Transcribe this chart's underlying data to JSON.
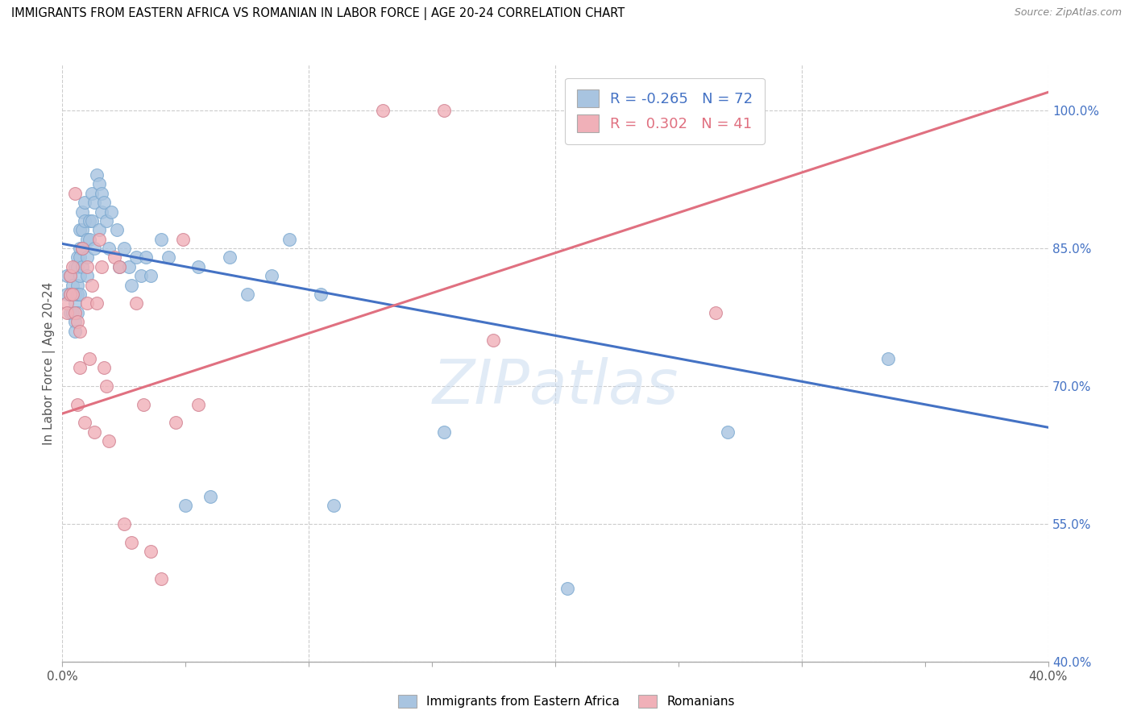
{
  "title": "IMMIGRANTS FROM EASTERN AFRICA VS ROMANIAN IN LABOR FORCE | AGE 20-24 CORRELATION CHART",
  "source": "Source: ZipAtlas.com",
  "ylabel": "In Labor Force | Age 20-24",
  "xlim": [
    0.0,
    0.4
  ],
  "ylim": [
    0.4,
    1.05
  ],
  "xticks": [
    0.0,
    0.05,
    0.1,
    0.15,
    0.2,
    0.25,
    0.3,
    0.35,
    0.4
  ],
  "xticklabels": [
    "0.0%",
    "",
    "",
    "",
    "",
    "",
    "",
    "",
    "40.0%"
  ],
  "ytick_right_labels": [
    "100.0%",
    "85.0%",
    "70.0%",
    "55.0%",
    "40.0%"
  ],
  "ytick_right_values": [
    1.0,
    0.85,
    0.7,
    0.55,
    0.4
  ],
  "blue_R": "-0.265",
  "blue_N": "72",
  "pink_R": "0.302",
  "pink_N": "41",
  "blue_color": "#a8c4e0",
  "pink_color": "#f0b0b8",
  "blue_line_color": "#4472c4",
  "pink_line_color": "#e07080",
  "watermark": "ZIPatlas",
  "blue_points_x": [
    0.002,
    0.002,
    0.003,
    0.003,
    0.003,
    0.004,
    0.004,
    0.004,
    0.004,
    0.005,
    0.005,
    0.005,
    0.005,
    0.005,
    0.006,
    0.006,
    0.006,
    0.006,
    0.006,
    0.007,
    0.007,
    0.007,
    0.007,
    0.007,
    0.008,
    0.008,
    0.008,
    0.008,
    0.009,
    0.009,
    0.01,
    0.01,
    0.01,
    0.011,
    0.011,
    0.012,
    0.012,
    0.013,
    0.013,
    0.014,
    0.015,
    0.015,
    0.016,
    0.016,
    0.017,
    0.018,
    0.019,
    0.02,
    0.022,
    0.023,
    0.025,
    0.027,
    0.028,
    0.03,
    0.032,
    0.034,
    0.036,
    0.04,
    0.043,
    0.05,
    0.055,
    0.06,
    0.068,
    0.075,
    0.085,
    0.092,
    0.105,
    0.11,
    0.155,
    0.205,
    0.27,
    0.335
  ],
  "blue_points_y": [
    0.8,
    0.82,
    0.78,
    0.8,
    0.82,
    0.8,
    0.78,
    0.81,
    0.78,
    0.83,
    0.8,
    0.79,
    0.77,
    0.76,
    0.84,
    0.83,
    0.81,
    0.8,
    0.78,
    0.87,
    0.85,
    0.84,
    0.82,
    0.8,
    0.89,
    0.87,
    0.85,
    0.83,
    0.9,
    0.88,
    0.86,
    0.84,
    0.82,
    0.88,
    0.86,
    0.91,
    0.88,
    0.9,
    0.85,
    0.93,
    0.92,
    0.87,
    0.91,
    0.89,
    0.9,
    0.88,
    0.85,
    0.89,
    0.87,
    0.83,
    0.85,
    0.83,
    0.81,
    0.84,
    0.82,
    0.84,
    0.82,
    0.86,
    0.84,
    0.57,
    0.83,
    0.58,
    0.84,
    0.8,
    0.82,
    0.86,
    0.8,
    0.57,
    0.65,
    0.48,
    0.65,
    0.73
  ],
  "pink_points_x": [
    0.002,
    0.002,
    0.003,
    0.003,
    0.004,
    0.004,
    0.005,
    0.005,
    0.006,
    0.006,
    0.007,
    0.007,
    0.008,
    0.009,
    0.01,
    0.01,
    0.011,
    0.012,
    0.013,
    0.014,
    0.015,
    0.016,
    0.017,
    0.018,
    0.019,
    0.021,
    0.023,
    0.025,
    0.028,
    0.03,
    0.033,
    0.036,
    0.04,
    0.046,
    0.049,
    0.055,
    0.13,
    0.155,
    0.175,
    0.23,
    0.265
  ],
  "pink_points_y": [
    0.79,
    0.78,
    0.82,
    0.8,
    0.83,
    0.8,
    0.78,
    0.91,
    0.68,
    0.77,
    0.76,
    0.72,
    0.85,
    0.66,
    0.83,
    0.79,
    0.73,
    0.81,
    0.65,
    0.79,
    0.86,
    0.83,
    0.72,
    0.7,
    0.64,
    0.84,
    0.83,
    0.55,
    0.53,
    0.79,
    0.68,
    0.52,
    0.49,
    0.66,
    0.86,
    0.68,
    1.0,
    1.0,
    0.75,
    1.0,
    0.78
  ],
  "blue_line_x0": 0.0,
  "blue_line_x1": 0.4,
  "blue_line_y0": 0.855,
  "blue_line_y1": 0.655,
  "pink_line_x0": 0.0,
  "pink_line_x1": 0.4,
  "pink_line_y0": 0.67,
  "pink_line_y1": 1.02
}
